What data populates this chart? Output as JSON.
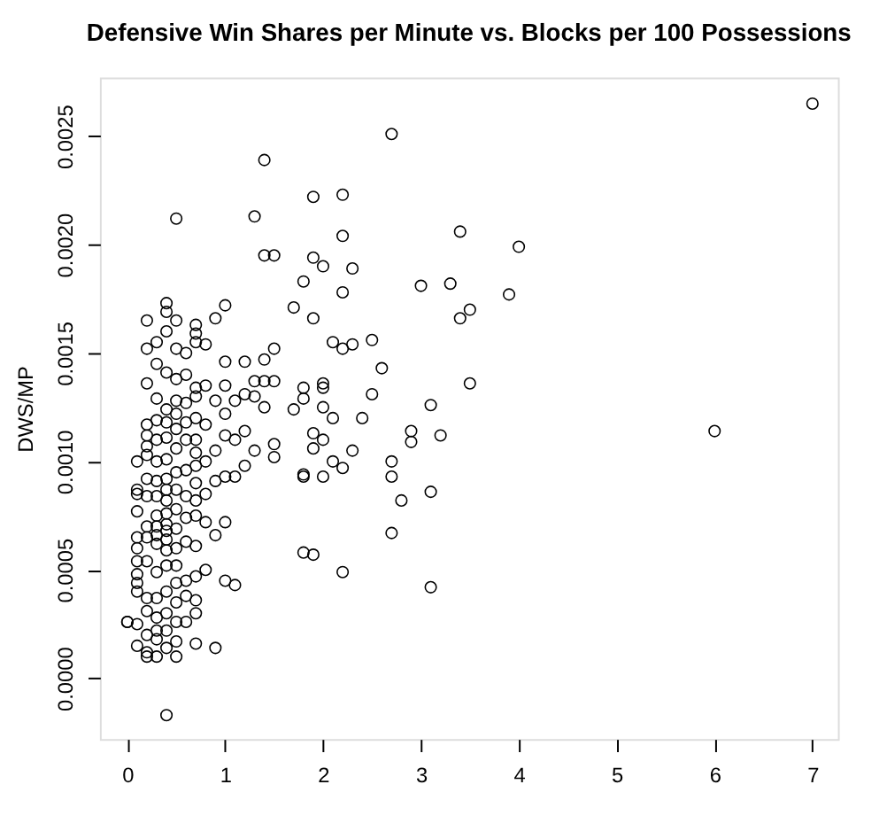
{
  "chart_data": {
    "type": "scatter",
    "title": "Defensive Win Shares per Minute vs. Blocks per 100 Possessions",
    "ylabel": "DWS/MP",
    "xlim": [
      -0.28,
      7.26
    ],
    "ylim": [
      -0.00028,
      0.00277
    ],
    "xticks": [
      0,
      1,
      2,
      3,
      4,
      5,
      6,
      7
    ],
    "yticks": [
      {
        "value": 0,
        "label": "0.0000"
      },
      {
        "value": 0.0005,
        "label": "0.0005"
      },
      {
        "value": 0.001,
        "label": "0.0010"
      },
      {
        "value": 0.0015,
        "label": "0.0015"
      },
      {
        "value": 0.002,
        "label": "0.0020"
      },
      {
        "value": 0.0025,
        "label": "0.0025"
      }
    ],
    "grid": false,
    "marker": "circle",
    "legend": false,
    "series": [
      {
        "color": "#000000",
        "x": [
          7.0,
          6.0,
          4.0,
          3.9,
          3.5,
          3.4,
          3.4,
          3.3,
          3.0,
          3.5,
          3.2,
          3.1,
          3.1,
          3.1,
          2.9,
          2.9,
          2.7,
          2.7,
          2.8,
          2.7,
          2.7,
          2.5,
          2.6,
          2.5,
          2.4,
          2.3,
          2.2,
          2.2,
          2.2,
          2.3,
          2.2,
          2.1,
          2.0,
          2.0,
          2.0,
          2.1,
          2.0,
          2.1,
          2.0,
          2.0,
          2.2,
          2.3,
          2.2,
          1.9,
          1.9,
          1.8,
          1.9,
          1.8,
          1.8,
          1.7,
          1.9,
          1.9,
          1.8,
          1.8,
          1.8,
          1.9,
          1.7,
          1.5,
          1.4,
          1.4,
          1.3,
          1.5,
          1.4,
          1.4,
          1.3,
          1.5,
          1.4,
          1.5,
          1.5,
          1.3,
          1.2,
          1.2,
          1.1,
          1.2,
          1.1,
          1.3,
          1.1,
          1.2,
          1.0,
          1.0,
          1.0,
          1.0,
          1.0,
          1.0,
          1.0,
          1.0,
          1.1,
          0.9,
          0.9,
          0.9,
          0.9,
          0.9,
          0.9,
          0.8,
          0.8,
          0.8,
          0.8,
          0.8,
          0.8,
          0.8,
          0.0,
          0.0,
          0.1,
          0.1,
          0.1,
          0.1,
          0.1,
          0.1,
          0.1,
          0.1,
          0.1,
          0.1,
          0.1,
          0.1,
          0.2,
          0.2,
          0.2,
          0.2,
          0.2,
          0.2,
          0.2,
          0.2,
          0.2,
          0.2,
          0.2,
          0.2,
          0.2,
          0.2,
          0.2,
          0.2,
          0.2,
          0.3,
          0.3,
          0.3,
          0.3,
          0.3,
          0.3,
          0.3,
          0.3,
          0.3,
          0.3,
          0.3,
          0.3,
          0.3,
          0.3,
          0.3,
          0.3,
          0.3,
          0.3,
          0.4,
          0.4,
          0.4,
          0.4,
          0.4,
          0.4,
          0.4,
          0.4,
          0.4,
          0.4,
          0.4,
          0.4,
          0.4,
          0.4,
          0.4,
          0.4,
          0.4,
          0.4,
          0.4,
          0.4,
          0.4,
          0.4,
          0.5,
          0.5,
          0.5,
          0.5,
          0.5,
          0.5,
          0.5,
          0.5,
          0.5,
          0.5,
          0.5,
          0.5,
          0.5,
          0.5,
          0.5,
          0.5,
          0.5,
          0.5,
          0.5,
          0.6,
          0.6,
          0.6,
          0.6,
          0.6,
          0.6,
          0.6,
          0.6,
          0.6,
          0.6,
          0.6,
          0.6,
          0.7,
          0.7,
          0.7,
          0.7,
          0.7,
          0.7,
          0.7,
          0.7,
          0.7,
          0.7,
          0.7,
          0.7,
          0.7,
          0.7,
          0.7,
          0.7,
          0.7
        ],
        "values": [
          0.00265,
          0.00114,
          0.00199,
          0.00177,
          0.0017,
          0.00166,
          0.00206,
          0.00182,
          0.00181,
          0.00136,
          0.00112,
          0.00126,
          0.00086,
          0.00042,
          0.00114,
          0.00109,
          0.001,
          0.00093,
          0.00082,
          0.00067,
          0.00251,
          0.00156,
          0.00143,
          0.00131,
          0.0012,
          0.00154,
          0.00152,
          0.00223,
          0.00204,
          0.00189,
          0.00178,
          0.00155,
          0.00136,
          0.00134,
          0.0019,
          0.0012,
          0.0011,
          0.001,
          0.00093,
          0.00125,
          0.00097,
          0.00105,
          0.00049,
          0.00222,
          0.00194,
          0.00183,
          0.00166,
          0.00134,
          0.00129,
          0.00124,
          0.00113,
          0.00106,
          0.00094,
          0.00093,
          0.00058,
          0.00057,
          0.00171,
          0.00195,
          0.00195,
          0.00239,
          0.00213,
          0.00152,
          0.00147,
          0.00137,
          0.00137,
          0.00137,
          0.00125,
          0.00108,
          0.00102,
          0.0013,
          0.00146,
          0.00131,
          0.00128,
          0.00114,
          0.0011,
          0.00105,
          0.00093,
          0.00098,
          0.00122,
          0.00172,
          0.00146,
          0.00135,
          0.00112,
          0.00093,
          0.00072,
          0.00045,
          0.00043,
          0.00014,
          0.00066,
          0.00091,
          0.00105,
          0.00128,
          0.00166,
          0.00154,
          0.00135,
          0.00117,
          0.001,
          0.00085,
          0.00072,
          0.0005,
          0.00026,
          0.00026,
          0.001,
          0.00087,
          0.00085,
          0.00077,
          0.00065,
          0.0006,
          0.00054,
          0.00048,
          0.00044,
          0.0004,
          0.00025,
          0.00015,
          0.00165,
          0.00152,
          0.00136,
          0.00117,
          0.00112,
          0.00107,
          0.00103,
          0.00092,
          0.00084,
          0.0007,
          0.00065,
          0.00054,
          0.00037,
          0.00031,
          0.0002,
          0.00012,
          0.0001,
          0.00155,
          0.00145,
          0.00129,
          0.00119,
          0.0011,
          0.001,
          0.00091,
          0.00084,
          0.00075,
          0.0007,
          0.00066,
          0.00062,
          0.00049,
          0.00037,
          0.00028,
          0.00022,
          0.00018,
          0.0001,
          0.00173,
          0.00169,
          0.0016,
          0.00141,
          0.00124,
          0.00118,
          0.00111,
          0.00101,
          0.00092,
          0.00087,
          0.00082,
          0.00076,
          0.00071,
          0.00068,
          0.00064,
          0.00059,
          0.00052,
          0.0004,
          0.0003,
          0.00022,
          0.00014,
          -0.00017,
          0.00212,
          0.00165,
          0.00152,
          0.00138,
          0.00128,
          0.00122,
          0.00115,
          0.00106,
          0.00095,
          0.00087,
          0.00078,
          0.00069,
          0.0006,
          0.00052,
          0.00044,
          0.00035,
          0.00026,
          0.00017,
          0.0001,
          0.0015,
          0.0014,
          0.00127,
          0.00118,
          0.0011,
          0.00096,
          0.00084,
          0.00074,
          0.00063,
          0.00045,
          0.00038,
          0.00026,
          0.00163,
          0.00159,
          0.00155,
          0.00134,
          0.0013,
          0.0012,
          0.0011,
          0.00104,
          0.00098,
          0.0009,
          0.00082,
          0.00075,
          0.00061,
          0.00047,
          0.00036,
          0.0003,
          0.00016
        ]
      }
    ]
  }
}
